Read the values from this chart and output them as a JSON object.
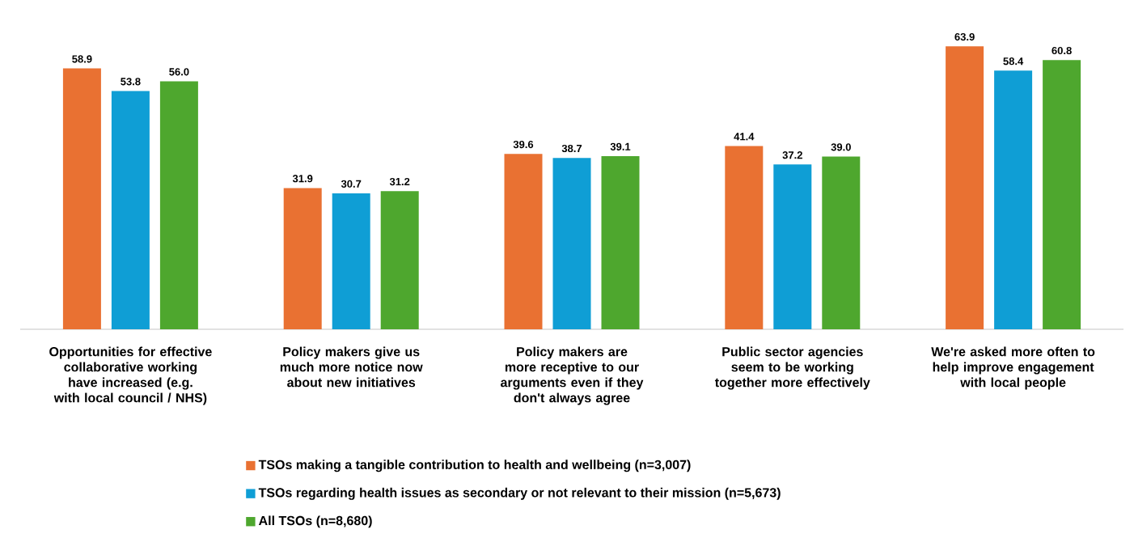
{
  "chart_data": {
    "type": "bar",
    "categories": [
      "Opportunities for effective collaborative working have increased (e.g. with local council / NHS)",
      "Policy makers give us much more notice now about new initiatives",
      "Policy makers are more receptive to our arguments even if they don't always agree",
      "Public sector agencies seem to be working together more effectively",
      "We're asked more often to help improve engagement with local people"
    ],
    "series": [
      {
        "name": "TSOs making a tangible contribution to health and wellbeing (n=3,007)",
        "color": "#e97132",
        "values": [
          58.9,
          31.9,
          39.6,
          41.4,
          63.9
        ],
        "value_labels": [
          "58.9",
          "31.9",
          "39.6",
          "41.4",
          "63.9"
        ]
      },
      {
        "name": "TSOs regarding health issues as secondary or not relevant to their mission (n=5,673)",
        "color": "#0f9ed5",
        "values": [
          53.8,
          30.7,
          38.7,
          37.2,
          58.4
        ],
        "value_labels": [
          "53.8",
          "30.7",
          "38.7",
          "37.2",
          "58.4"
        ]
      },
      {
        "name": "All TSOs (n=8,680)",
        "color": "#4ea72e",
        "values": [
          56.0,
          31.2,
          39.1,
          39.0,
          60.8
        ],
        "value_labels": [
          "56.0",
          "31.2",
          "39.1",
          "39.0",
          "60.8"
        ]
      }
    ],
    "legend": "bottom"
  }
}
